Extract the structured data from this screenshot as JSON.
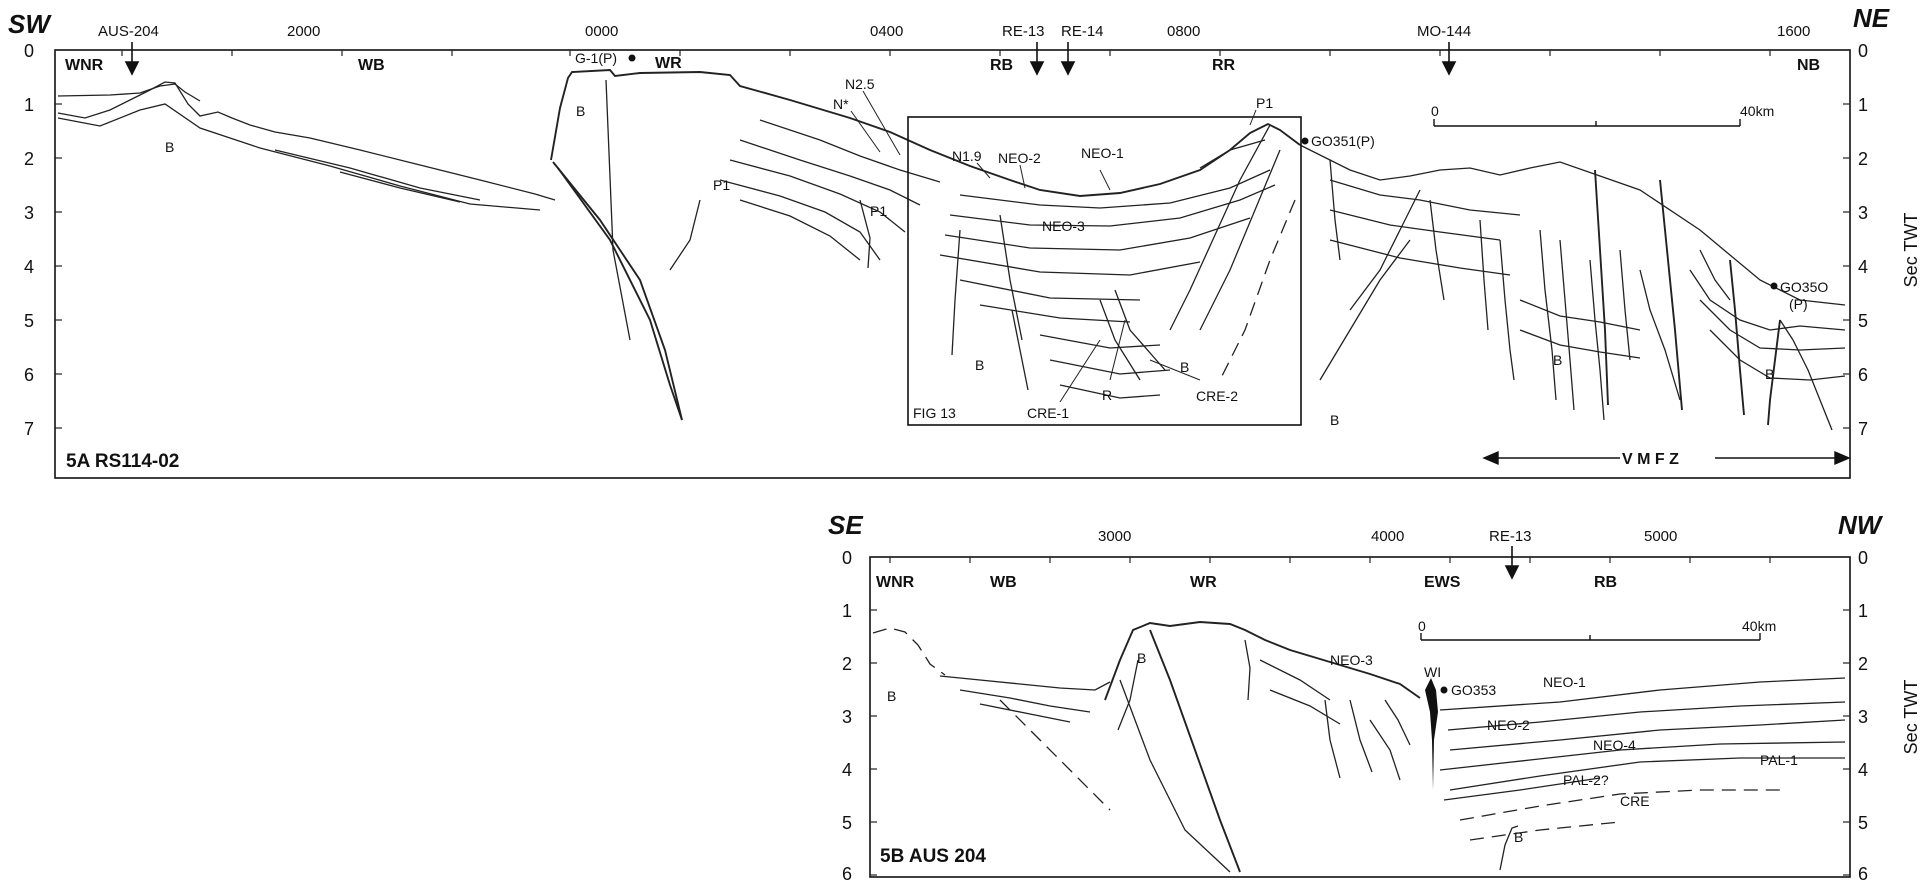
{
  "panel_a": {
    "id_label": "5A RS114-02",
    "dir_left": "SW",
    "dir_right": "NE",
    "top_ticks": [
      {
        "label": "AUS-204",
        "arrow": true
      },
      {
        "label": "2000",
        "arrow": false
      },
      {
        "label": "0000",
        "arrow": false
      },
      {
        "label": "0400",
        "arrow": false
      },
      {
        "label": "RE-13",
        "arrow": true
      },
      {
        "label": "RE-14",
        "arrow": true
      },
      {
        "label": "0800",
        "arrow": false
      },
      {
        "label": "MO-144",
        "arrow": true
      },
      {
        "label": "1600",
        "arrow": false
      }
    ],
    "left_axis": [
      "0",
      "1",
      "2",
      "3",
      "4",
      "5",
      "6",
      "7"
    ],
    "right_axis": [
      "0",
      "1",
      "2",
      "3",
      "4",
      "5",
      "6",
      "7"
    ],
    "right_axis_title": "Sec TWT",
    "regions": [
      "WNR",
      "WB",
      "WR",
      "RB",
      "RR",
      "NB"
    ],
    "labels": [
      "G-1(P)",
      "B",
      "B",
      "N2.5",
      "N*",
      "N1.9",
      "NEO-2",
      "NEO-1",
      "P1",
      "GO351(P)",
      "P1",
      "P1",
      "NEO-3",
      "B",
      "B",
      "R",
      "CRE-1",
      "CRE-2",
      "FIG 13",
      "B",
      "B",
      "B",
      "GO35O",
      "(P)"
    ],
    "scale": {
      "start": "0",
      "end": "40km"
    },
    "fault_zone": "V M F Z"
  },
  "panel_b": {
    "id_label": "5B AUS 204",
    "dir_left": "SE",
    "dir_right": "NW",
    "top_ticks": [
      {
        "label": "3000",
        "arrow": false
      },
      {
        "label": "4000",
        "arrow": false
      },
      {
        "label": "RE-13",
        "arrow": true
      },
      {
        "label": "5000",
        "arrow": false
      }
    ],
    "left_axis": [
      "0",
      "1",
      "2",
      "3",
      "4",
      "5",
      "6"
    ],
    "right_axis": [
      "0",
      "1",
      "2",
      "3",
      "4",
      "5",
      "6"
    ],
    "right_axis_title": "Sec TWT",
    "regions": [
      "WNR",
      "WB",
      "WR",
      "EWS",
      "RB"
    ],
    "labels": [
      "B",
      "B",
      "NEO-3",
      "WI",
      "GO353",
      "NEO-1",
      "NEO-2",
      "NEO-4",
      "PAL-1",
      "PAL-2?",
      "CRE",
      "B"
    ],
    "scale": {
      "start": "0",
      "end": "40km"
    }
  }
}
